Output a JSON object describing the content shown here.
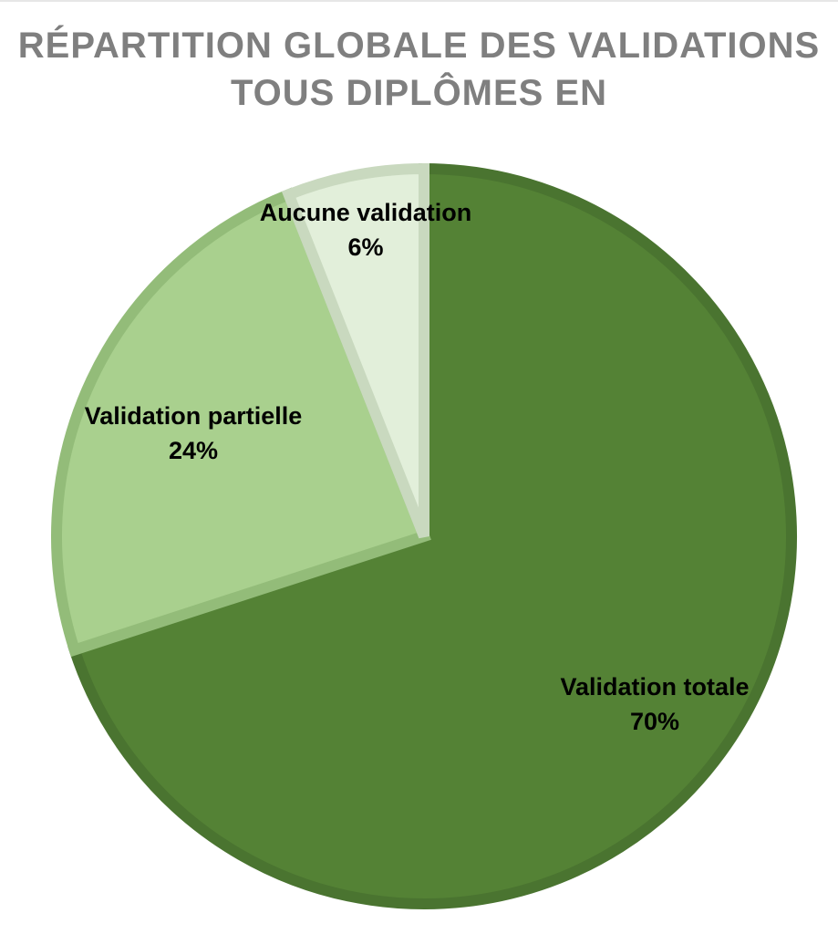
{
  "chart_data": {
    "type": "pie",
    "title_lines": [
      "RÉPARTITION GLOBALE DES VALIDATIONS",
      "TOUS DIPLÔMES EN"
    ],
    "slices": [
      {
        "name": "Validation totale",
        "value": 70,
        "label": "70%",
        "color": "#548235",
        "border": "#4a7430"
      },
      {
        "name": "Validation partielle",
        "value": 24,
        "label": "24%",
        "color": "#a9d08e",
        "border": "#93bc79"
      },
      {
        "name": "Aucune validation",
        "value": 6,
        "label": "6%",
        "color": "#e2efda",
        "border": "#c9d9bf"
      }
    ],
    "start_angle": "12 o'clock",
    "direction": "clockwise",
    "legend": "none",
    "title_color": "#7f7f7f"
  }
}
